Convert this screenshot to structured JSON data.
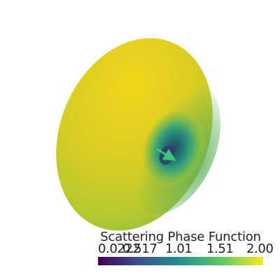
{
  "colorbar": {
    "title": "Scattering Phase Function",
    "tick_labels": [
      "0.0222",
      "0.517",
      "1.01",
      "1.51",
      "2.00"
    ],
    "range": [
      0.0222,
      2.0
    ],
    "colormap": "viridis",
    "colors": [
      "#440154",
      "#3b528b",
      "#21918c",
      "#5ec962",
      "#fde725"
    ]
  },
  "surface": {
    "colors": {
      "high": "#e6d41c",
      "mid": "#6ec45a",
      "low": "#1f6e74",
      "min": "#2a3f6a"
    }
  },
  "direction_arrow": {
    "color": "#3ec47a"
  }
}
